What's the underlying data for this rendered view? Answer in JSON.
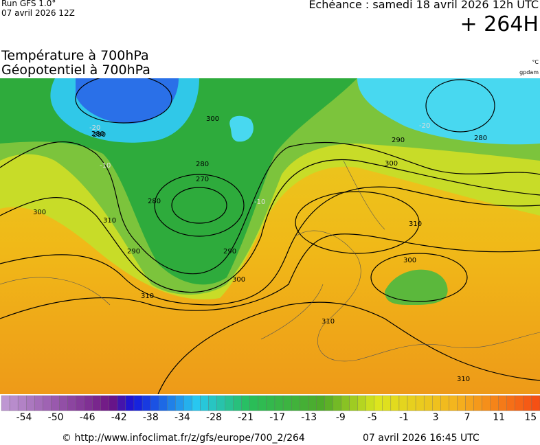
{
  "header": {
    "run": "Run GFS 1.0°",
    "run_date": "07 avril 2026 12Z",
    "valid": "Echéance : samedi 18 avril 2026 12h UTC",
    "lead": "+ 264H"
  },
  "titles": {
    "line1": "Température à 700hPa",
    "line2": "Géopotentiel à 700hPa",
    "unit1": "°C",
    "unit2": "gpdam"
  },
  "map": {
    "contour_labels": [
      "280",
      "270",
      "280",
      "280",
      "290",
      "300",
      "300",
      "310",
      "300",
      "310",
      "290",
      "280",
      "300",
      "310",
      "310",
      "300",
      "310",
      "290",
      "280",
      "-20",
      "-10",
      "-10",
      "-20"
    ]
  },
  "scale": {
    "labels": [
      "-54",
      "-50",
      "-46",
      "-42",
      "-38",
      "-34",
      "-28",
      "-21",
      "-17",
      "-13",
      "-9",
      "-5",
      "-1",
      "3",
      "7",
      "11",
      "15"
    ]
  },
  "footer": {
    "url": "© http://www.infoclimat.fr/z/gfs/europe/700_2/264",
    "generated": "07 avril 2026 16:45 UTC"
  }
}
